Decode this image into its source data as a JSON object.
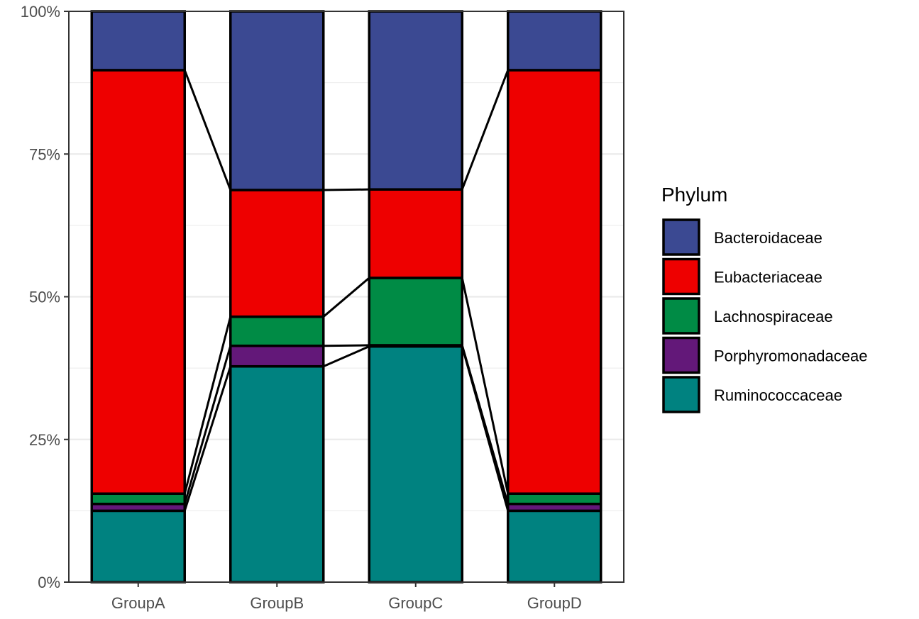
{
  "chart_data": {
    "type": "bar",
    "stacked": true,
    "percent": true,
    "categories": [
      "GroupA",
      "GroupB",
      "GroupC",
      "GroupD"
    ],
    "series": [
      {
        "name": "Ruminococcaceae",
        "color": "#008280",
        "values": [
          12.5,
          37.8,
          41.3,
          12.5
        ]
      },
      {
        "name": "Porphyromonadaceae",
        "color": "#631879",
        "values": [
          1.2,
          3.6,
          0.2,
          1.2
        ]
      },
      {
        "name": "Lachnospiraceae",
        "color": "#008B45",
        "values": [
          1.8,
          5.1,
          11.8,
          1.8
        ]
      },
      {
        "name": "Eubacteriaceae",
        "color": "#EE0000",
        "values": [
          74.2,
          22.2,
          15.5,
          74.2
        ]
      },
      {
        "name": "Bacteroidaceae",
        "color": "#3B4992",
        "values": [
          10.3,
          31.3,
          31.2,
          10.3
        ]
      }
    ],
    "ylim": [
      0,
      100
    ],
    "yticks": [
      "0%",
      "25%",
      "50%",
      "75%",
      "100%"
    ],
    "xlabel": "",
    "ylabel": "",
    "legend": {
      "title": "Phylum",
      "position": "right",
      "items": [
        "Bacteroidaceae",
        "Eubacteriaceae",
        "Lachnospiraceae",
        "Porphyromonadaceae",
        "Ruminococcaceae"
      ]
    },
    "grid": true,
    "connector_lines": true
  }
}
